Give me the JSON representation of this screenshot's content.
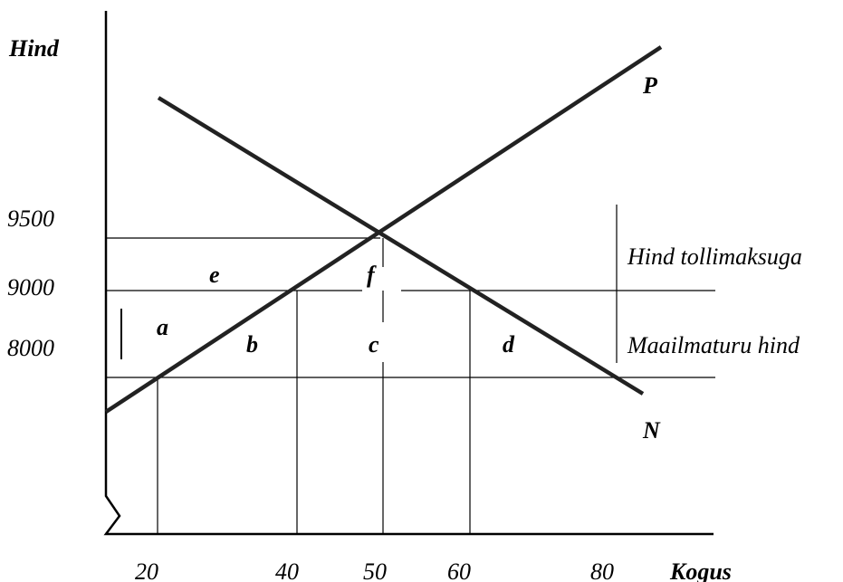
{
  "axes": {
    "y_label": "Hind",
    "x_label": "Kogus"
  },
  "y_ticks": [
    "9500",
    "9000",
    "8000"
  ],
  "x_ticks": [
    "20",
    "40",
    "50",
    "60",
    "80"
  ],
  "curves": {
    "supply": "P",
    "demand": "N"
  },
  "areas": {
    "a": "a",
    "b": "b",
    "c": "c",
    "d": "d",
    "e": "e",
    "f": "f"
  },
  "price_lines": {
    "tariff": "Hind tollimaksuga",
    "world": "Maailmaturu hind"
  }
}
